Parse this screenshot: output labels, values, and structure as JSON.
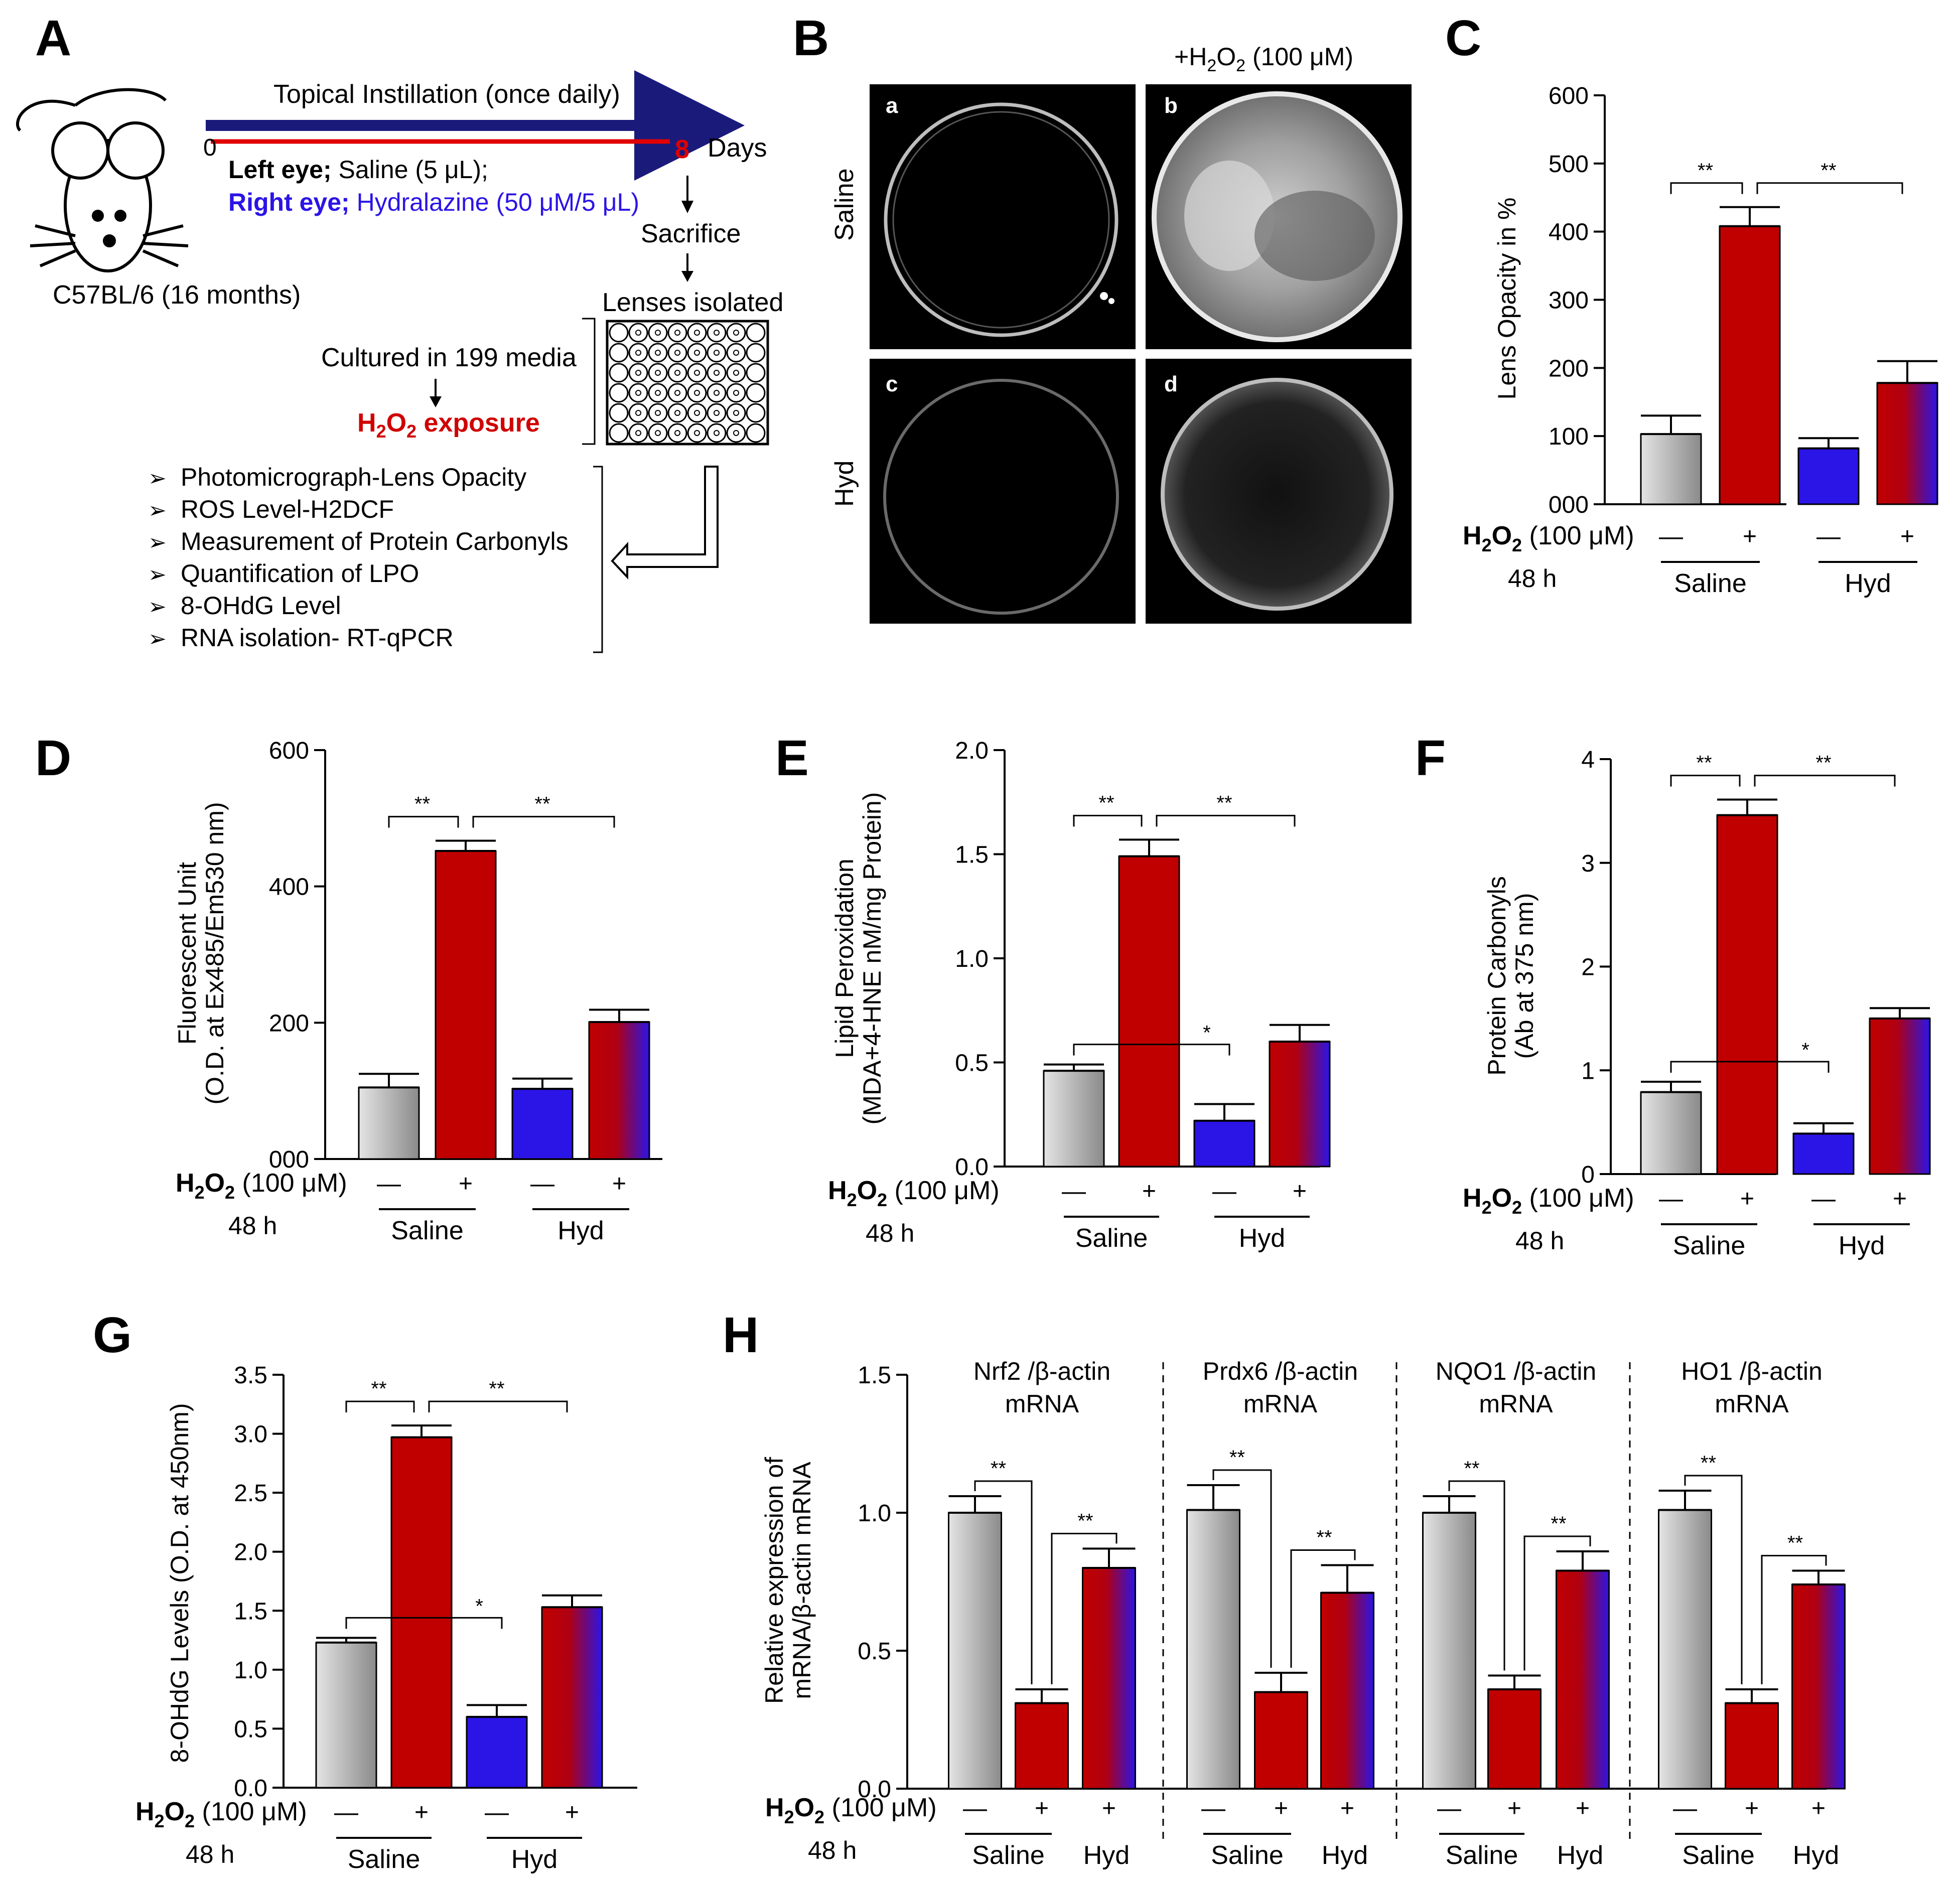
{
  "panel_letters": {
    "A": "A",
    "B": "B",
    "C": "C",
    "D": "D",
    "E": "E",
    "F": "F",
    "G": "G",
    "H": "H"
  },
  "colors": {
    "saline_gray": "#b8b8b8",
    "red": "#c00000",
    "blue": "#2b14e6",
    "black": "#000000",
    "white": "#ffffff"
  },
  "schematic": {
    "timeline_title": "Topical Instillation  (once daily)",
    "day0": "0",
    "day8": "8",
    "days": "Days",
    "left_eye_bold": "Left eye;",
    "left_eye_rest": " Saline (5 μL);",
    "right_eye_bold": "Right eye;",
    "right_eye_rest": " Hydralazine (50 μM/5 μL)",
    "mouse_label": "C57BL/6 (16 months)",
    "sacrifice": "Sacrifice",
    "lenses_isolated": "Lenses isolated",
    "cultured": "Cultured in 199 media",
    "h2o2_main": "H",
    "h2o2_sub1": "2",
    "h2o2_o": "O",
    "h2o2_sub2": "2",
    "exposure": " exposure",
    "bullets": [
      "Photomicrograph-Lens Opacity",
      "ROS Level-H2DCF",
      "Measurement of Protein Carbonyls",
      "Quantification of LPO",
      "8-OHdG Level",
      "RNA isolation- RT-qPCR"
    ]
  },
  "micrographs": {
    "top_label_prefix": "+H",
    "top_label_sub1": "2",
    "top_label_o": "O",
    "top_label_sub2": "2",
    "top_label_rest": " (100 μM)",
    "row_saline": "Saline",
    "row_hyd": "Hyd",
    "tiles": [
      "a",
      "b",
      "c",
      "d"
    ]
  },
  "treatment_axis": {
    "h2o2_h": "H",
    "h2o2_2a": "2",
    "h2o2_o": "O",
    "h2o2_2b": "2",
    "h2o2_rest": " (100 μM)",
    "time": "48 h",
    "minus": "—",
    "plus": "+",
    "group_saline": "Saline",
    "group_hyd": "Hyd"
  },
  "chart_data": [
    {
      "panel": "C",
      "type": "bar",
      "ylabel": "Lens Opacity in %",
      "ylim": [
        0,
        600
      ],
      "ticks": [
        0,
        100,
        200,
        300,
        400,
        500,
        600
      ],
      "tick_labels": [
        "000",
        "100",
        "200",
        "300",
        "400",
        "500",
        "600"
      ],
      "categories": [
        "Saline −",
        "Saline +",
        "Hyd −",
        "Hyd +"
      ],
      "values": [
        103,
        408,
        82,
        178
      ],
      "errors": [
        27,
        28,
        15,
        32
      ],
      "significance": [
        {
          "label": "**"
        },
        {
          "label": "**"
        }
      ]
    },
    {
      "panel": "D",
      "type": "bar",
      "ylabel": "Fluorescent Unit",
      "ylabel2": "(O.D. at Ex485/Em530 nm)",
      "ylim": [
        0,
        600
      ],
      "ticks": [
        0,
        200,
        400,
        600
      ],
      "tick_labels": [
        "000",
        "200",
        "400",
        "600"
      ],
      "categories": [
        "Saline −",
        "Saline +",
        "Hyd −",
        "Hyd +"
      ],
      "values": [
        105,
        452,
        103,
        201
      ],
      "errors": [
        20,
        15,
        15,
        18
      ],
      "significance": [
        {
          "label": "**"
        },
        {
          "label": "**"
        }
      ]
    },
    {
      "panel": "E",
      "type": "bar",
      "ylabel": "Lipid Peroxidation",
      "ylabel2": "(MDA+4-HNE nM/mg Protein)",
      "ylim": [
        0,
        2.0
      ],
      "ticks": [
        0,
        0.5,
        1.0,
        1.5,
        2.0
      ],
      "tick_labels": [
        "0.0",
        "0.5",
        "1.0",
        "1.5",
        "2.0"
      ],
      "categories": [
        "Saline −",
        "Saline +",
        "Hyd −",
        "Hyd +"
      ],
      "values": [
        0.46,
        1.49,
        0.22,
        0.6
      ],
      "errors": [
        0.03,
        0.08,
        0.08,
        0.08
      ],
      "significance": [
        {
          "label": "**"
        },
        {
          "label": "**"
        },
        {
          "label": "*"
        }
      ]
    },
    {
      "panel": "F",
      "type": "bar",
      "ylabel": "Protein Carbonyls",
      "ylabel2": "(Ab at 375 nm)",
      "ylim": [
        0,
        4
      ],
      "ticks": [
        0,
        1,
        2,
        3,
        4
      ],
      "tick_labels": [
        "0",
        "1",
        "2",
        "3",
        "4"
      ],
      "categories": [
        "Saline −",
        "Saline +",
        "Hyd −",
        "Hyd +"
      ],
      "values": [
        0.79,
        3.46,
        0.39,
        1.5
      ],
      "errors": [
        0.1,
        0.15,
        0.1,
        0.1
      ],
      "significance": [
        {
          "label": "**"
        },
        {
          "label": "**"
        },
        {
          "label": "*"
        }
      ]
    },
    {
      "panel": "G",
      "type": "bar",
      "ylabel": "8-OHdG Levels (O.D. at 450nm)",
      "ylim": [
        0,
        3.5
      ],
      "ticks": [
        0,
        0.5,
        1.0,
        1.5,
        2.0,
        2.5,
        3.0,
        3.5
      ],
      "tick_labels": [
        "0.0",
        "0.5",
        "1.0",
        "1.5",
        "2.0",
        "2.5",
        "3.0",
        "3.5"
      ],
      "categories": [
        "Saline −",
        "Saline +",
        "Hyd −",
        "Hyd +"
      ],
      "values": [
        1.23,
        2.97,
        0.6,
        1.53
      ],
      "errors": [
        0.04,
        0.1,
        0.1,
        0.1
      ],
      "significance": [
        {
          "label": "**"
        },
        {
          "label": "**"
        },
        {
          "label": "*"
        }
      ]
    },
    {
      "panel": "H",
      "type": "bar",
      "ylabel": "Relative expression of",
      "ylabel2": "mRNA/β-actin mRNA",
      "ylim": [
        0,
        1.5
      ],
      "ticks": [
        0,
        0.5,
        1.0,
        1.5
      ],
      "tick_labels": [
        "0.0",
        "0.5",
        "1.0",
        "1.5"
      ],
      "categories": [
        "Saline −",
        "Saline +",
        "Hyd +"
      ],
      "genes": [
        {
          "name": "Nrf2 /β-actin",
          "sub": "mRNA",
          "values": [
            1.0,
            0.31,
            0.8
          ],
          "errors": [
            0.06,
            0.05,
            0.07
          ]
        },
        {
          "name": "Prdx6 /β-actin",
          "sub": "mRNA",
          "values": [
            1.01,
            0.35,
            0.71
          ],
          "errors": [
            0.09,
            0.07,
            0.1
          ]
        },
        {
          "name": "NQO1 /β-actin",
          "sub": "mRNA",
          "values": [
            1.0,
            0.36,
            0.79
          ],
          "errors": [
            0.06,
            0.05,
            0.07
          ]
        },
        {
          "name": "HO1 /β-actin",
          "sub": "mRNA",
          "values": [
            1.01,
            0.31,
            0.74
          ],
          "errors": [
            0.07,
            0.05,
            0.05
          ]
        }
      ],
      "significance_label": "**"
    }
  ]
}
